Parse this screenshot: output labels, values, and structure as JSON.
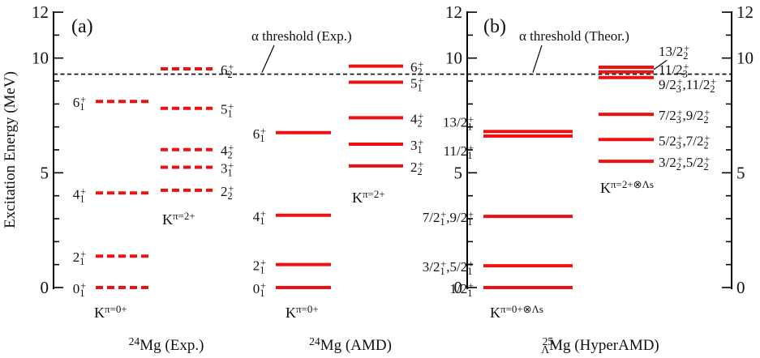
{
  "figure": {
    "ylabel": "Excitation Energy (MeV)",
    "panel_a": "(a)",
    "panel_b": "(b)",
    "threshold_exp": "α threshold (Exp.)",
    "threshold_theor": "α threshold (Theor.)"
  },
  "chart_data": {
    "type": "level-scheme",
    "ylabel": "Excitation Energy (MeV)",
    "ylim": [
      0,
      12
    ],
    "yticks": [
      0,
      5,
      10,
      12
    ],
    "threshold_energy": 9.3,
    "columns": [
      {
        "name": "24Mg (Exp.)",
        "style": "dashed",
        "bands": [
          {
            "label": "K^π = 0^+",
            "levels": [
              {
                "label": "0_1^+",
                "energy": 0.0
              },
              {
                "label": "2_1^+",
                "energy": 1.37
              },
              {
                "label": "4_1^+",
                "energy": 4.12
              },
              {
                "label": "6_1^+",
                "energy": 8.11
              }
            ]
          },
          {
            "label": "K^π = 2^+",
            "levels": [
              {
                "label": "2_2^+",
                "energy": 4.24
              },
              {
                "label": "3_1^+",
                "energy": 5.24
              },
              {
                "label": "4_2^+",
                "energy": 6.01
              },
              {
                "label": "5_1^+",
                "energy": 7.81
              },
              {
                "label": "6_2^+",
                "energy": 9.53
              }
            ]
          }
        ]
      },
      {
        "name": "24Mg (AMD)",
        "style": "solid",
        "bands": [
          {
            "label": "K^π = 0^+",
            "levels": [
              {
                "label": "0_1^+",
                "energy": 0.0
              },
              {
                "label": "2_1^+",
                "energy": 1.0
              },
              {
                "label": "4_1^+",
                "energy": 3.15
              },
              {
                "label": "6_1^+",
                "energy": 6.75
              }
            ]
          },
          {
            "label": "K^π = 2^+",
            "levels": [
              {
                "label": "2_2^+",
                "energy": 5.3
              },
              {
                "label": "3_1^+",
                "energy": 6.25
              },
              {
                "label": "4_2^+",
                "energy": 7.4
              },
              {
                "label": "5_1^+",
                "energy": 8.95
              },
              {
                "label": "6_2^+",
                "energy": 9.65
              }
            ]
          }
        ]
      },
      {
        "name": "25ΛMg (HyperAMD)",
        "style": "solid",
        "bands": [
          {
            "label": "K^π = 0^+ ⊗ Λs",
            "levels": [
              {
                "label": "1/2_1^+",
                "energy": 0.0
              },
              {
                "label": "3/2_1^+, 5/2_1^+",
                "energy": 0.95
              },
              {
                "label": "7/2_1^+, 9/2_1^+",
                "energy": 3.1
              },
              {
                "label": "11/2_1^+",
                "energy": 6.6
              },
              {
                "label": "13/2_1^+",
                "energy": 6.8
              }
            ]
          },
          {
            "label": "K^π = 2^+ ⊗ Λs",
            "levels": [
              {
                "label": "3/2_2^+, 5/2_2^+",
                "energy": 5.5
              },
              {
                "label": "5/2_3^+, 7/2_2^+",
                "energy": 6.45
              },
              {
                "label": "7/2_3^+, 9/2_2^+",
                "energy": 7.55
              },
              {
                "label": "9/2_3^+, 11/2_2^+",
                "energy": 9.15
              },
              {
                "label": "11/2_3^+",
                "energy": 9.4
              },
              {
                "label": "13/2_2^+",
                "energy": 9.6
              }
            ]
          }
        ]
      }
    ]
  }
}
